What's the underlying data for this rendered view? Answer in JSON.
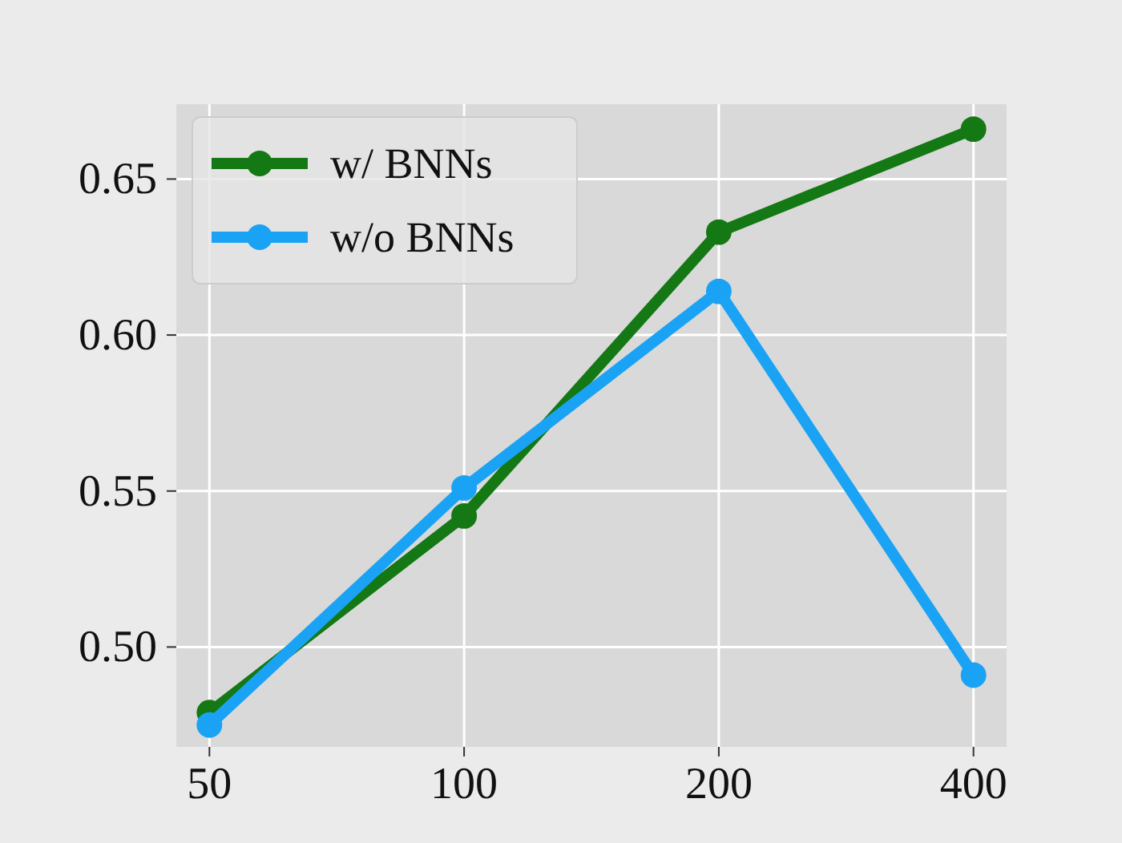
{
  "chart_data": {
    "type": "line",
    "categories": [
      "50",
      "100",
      "200",
      "400"
    ],
    "series": [
      {
        "name": "w/ BNNs",
        "color": "#147814",
        "values": [
          0.479,
          0.542,
          0.633,
          0.666
        ]
      },
      {
        "name": "w/o BNNs",
        "color": "#1aa3f5",
        "values": [
          0.475,
          0.551,
          0.614,
          0.491
        ]
      }
    ],
    "ylim": [
      0.468,
      0.674
    ],
    "yticks": [
      {
        "value": 0.5,
        "label": "0.50"
      },
      {
        "value": 0.55,
        "label": "0.55"
      },
      {
        "value": 0.6,
        "label": "0.60"
      },
      {
        "value": 0.65,
        "label": "0.65"
      }
    ],
    "grid": true,
    "legend": "top left",
    "marker": "circle",
    "line_style": "solid"
  }
}
